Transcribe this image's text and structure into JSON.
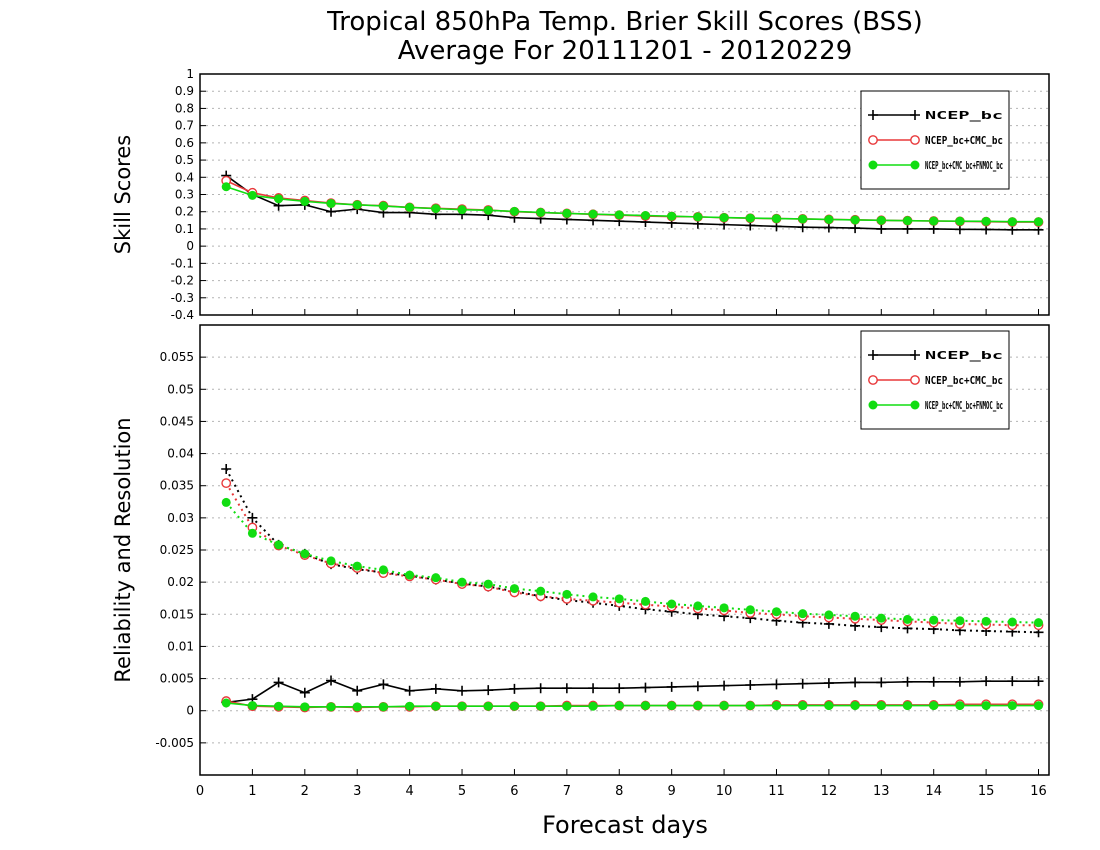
{
  "page": {
    "title_line1": "Tropical 850hPa Temp. Brier Skill Scores (BSS)",
    "title_line2": "Average For 20111201 - 20120229",
    "xlabel": "Forecast days"
  },
  "colors": {
    "black": "#000000",
    "red": "#e8383a",
    "green": "#11dd11",
    "grid": "#b4b4b4"
  },
  "chart_data": [
    {
      "type": "line",
      "ylabel": "Skill Scores",
      "xlim": [
        0,
        16.2
      ],
      "ylim": [
        -0.4,
        1
      ],
      "xticks": [
        0,
        1,
        2,
        3,
        4,
        5,
        6,
        7,
        8,
        9,
        10,
        11,
        12,
        13,
        14,
        15,
        16
      ],
      "yticks": [
        "1",
        "0.9",
        "0.8",
        "0.7",
        "0.6",
        "0.5",
        "0.4",
        "0.3",
        "0.2",
        "0.1",
        "0",
        "-0.1",
        "-0.2",
        "-0.3",
        "-0.4"
      ],
      "grid": true,
      "legend_position": "top-right",
      "legend": [
        "NCEP_bc",
        "NCEP_bc+CMC_bc",
        "NCEP_bc+CMC_bc+FNMOC_bc"
      ],
      "x": [
        0.5,
        1,
        1.5,
        2,
        2.5,
        3,
        3.5,
        4,
        4.5,
        5,
        5.5,
        6,
        6.5,
        7,
        7.5,
        8,
        8.5,
        9,
        9.5,
        10,
        10.5,
        11,
        11.5,
        12,
        12.5,
        13,
        13.5,
        14,
        14.5,
        15,
        15.5,
        16
      ],
      "series": [
        {
          "name": "NCEP_bc",
          "color": "black",
          "marker": "plus",
          "style": "solid",
          "values": [
            0.41,
            0.3,
            0.235,
            0.24,
            0.2,
            0.215,
            0.195,
            0.195,
            0.185,
            0.185,
            0.18,
            0.165,
            0.16,
            0.155,
            0.15,
            0.145,
            0.14,
            0.135,
            0.13,
            0.125,
            0.12,
            0.115,
            0.11,
            0.108,
            0.105,
            0.1,
            0.1,
            0.1,
            0.098,
            0.097,
            0.095,
            0.095
          ]
        },
        {
          "name": "NCEP_bc+CMC_bc",
          "color": "red",
          "marker": "circle",
          "style": "solid",
          "values": [
            0.38,
            0.31,
            0.28,
            0.265,
            0.25,
            0.24,
            0.235,
            0.225,
            0.22,
            0.215,
            0.21,
            0.2,
            0.195,
            0.19,
            0.185,
            0.18,
            0.175,
            0.172,
            0.17,
            0.165,
            0.162,
            0.16,
            0.158,
            0.155,
            0.153,
            0.15,
            0.148,
            0.146,
            0.144,
            0.142,
            0.14,
            0.14
          ]
        },
        {
          "name": "NCEP_bc+CMC_bc+FNMOC_bc",
          "color": "green",
          "marker": "dot",
          "style": "solid",
          "values": [
            0.345,
            0.295,
            0.275,
            0.26,
            0.248,
            0.24,
            0.233,
            0.225,
            0.218,
            0.212,
            0.208,
            0.202,
            0.196,
            0.19,
            0.186,
            0.182,
            0.178,
            0.174,
            0.17,
            0.166,
            0.163,
            0.16,
            0.158,
            0.155,
            0.152,
            0.15,
            0.148,
            0.146,
            0.145,
            0.144,
            0.142,
            0.142
          ]
        }
      ]
    },
    {
      "type": "line",
      "ylabel": "Reliability and Resolution",
      "xlim": [
        0,
        16.2
      ],
      "ylim": [
        -0.01,
        0.06
      ],
      "xticks": [
        0,
        1,
        2,
        3,
        4,
        5,
        6,
        7,
        8,
        9,
        10,
        11,
        12,
        13,
        14,
        15,
        16
      ],
      "yticks": [
        "0.055",
        "0.05",
        "0.045",
        "0.04",
        "0.035",
        "0.03",
        "0.025",
        "0.02",
        "0.015",
        "0.01",
        "0.005",
        "0",
        "-0.005"
      ],
      "grid": true,
      "legend_position": "top-right",
      "legend": [
        "NCEP_bc",
        "NCEP_bc+CMC_bc",
        "NCEP_bc+CMC_bc+FNMOC_bc"
      ],
      "x": [
        0.5,
        1,
        1.5,
        2,
        2.5,
        3,
        3.5,
        4,
        4.5,
        5,
        5.5,
        6,
        6.5,
        7,
        7.5,
        8,
        8.5,
        9,
        9.5,
        10,
        10.5,
        11,
        11.5,
        12,
        12.5,
        13,
        13.5,
        14,
        14.5,
        15,
        15.5,
        16
      ],
      "series": [
        {
          "name": "NCEP_bc resolution",
          "color": "black",
          "marker": "plus",
          "style": "dotted",
          "values": [
            0.0376,
            0.03,
            0.0258,
            0.0244,
            0.0228,
            0.022,
            0.0215,
            0.021,
            0.0204,
            0.0198,
            0.0193,
            0.0186,
            0.0178,
            0.0172,
            0.0168,
            0.0163,
            0.0158,
            0.0154,
            0.015,
            0.0147,
            0.0144,
            0.014,
            0.0137,
            0.0135,
            0.0132,
            0.013,
            0.0128,
            0.0127,
            0.0125,
            0.0124,
            0.0123,
            0.0122
          ]
        },
        {
          "name": "NCEP_bc+CMC_bc resolution",
          "color": "red",
          "marker": "circle",
          "style": "dotted",
          "values": [
            0.0354,
            0.0285,
            0.0257,
            0.0242,
            0.0229,
            0.0222,
            0.0214,
            0.0209,
            0.0204,
            0.0197,
            0.0193,
            0.0184,
            0.0178,
            0.0174,
            0.0171,
            0.0168,
            0.0165,
            0.0162,
            0.0159,
            0.0156,
            0.0152,
            0.015,
            0.0147,
            0.0145,
            0.0143,
            0.0141,
            0.0139,
            0.0137,
            0.0135,
            0.0134,
            0.0133,
            0.0133
          ]
        },
        {
          "name": "NCEP_bc+CMC_bc+FNMOC_bc resolution",
          "color": "green",
          "marker": "dot",
          "style": "dotted",
          "values": [
            0.0324,
            0.0276,
            0.0258,
            0.0244,
            0.0233,
            0.0225,
            0.0219,
            0.0211,
            0.0207,
            0.02,
            0.0197,
            0.019,
            0.0186,
            0.0181,
            0.0177,
            0.0174,
            0.017,
            0.0166,
            0.0163,
            0.016,
            0.0157,
            0.0154,
            0.0151,
            0.0149,
            0.0147,
            0.0144,
            0.0142,
            0.0141,
            0.014,
            0.0139,
            0.0138,
            0.0137
          ]
        },
        {
          "name": "NCEP_bc reliability",
          "color": "black",
          "marker": "plus",
          "style": "solid",
          "values": [
            0.0013,
            0.0018,
            0.0044,
            0.0028,
            0.0047,
            0.0031,
            0.0041,
            0.0031,
            0.0034,
            0.0031,
            0.0032,
            0.0034,
            0.0035,
            0.0035,
            0.0035,
            0.0035,
            0.0036,
            0.0037,
            0.0038,
            0.0039,
            0.004,
            0.0041,
            0.0042,
            0.0043,
            0.0044,
            0.0044,
            0.0045,
            0.0045,
            0.0045,
            0.0046,
            0.0046,
            0.0046
          ]
        },
        {
          "name": "NCEP_bc+CMC_bc reliability",
          "color": "red",
          "marker": "circle",
          "style": "solid",
          "values": [
            0.0015,
            0.0007,
            0.0006,
            0.0005,
            0.0006,
            0.0005,
            0.0006,
            0.0006,
            0.0007,
            0.0007,
            0.0007,
            0.0007,
            0.0007,
            0.0008,
            0.0008,
            0.0008,
            0.0008,
            0.0008,
            0.0008,
            0.0008,
            0.0008,
            0.0009,
            0.0009,
            0.0009,
            0.0009,
            0.0009,
            0.0009,
            0.0009,
            0.001,
            0.001,
            0.001,
            0.001
          ]
        },
        {
          "name": "NCEP_bc+CMC_bc+FNMOC_bc reliability",
          "color": "green",
          "marker": "dot",
          "style": "solid",
          "values": [
            0.0012,
            0.0008,
            0.0007,
            0.0006,
            0.0006,
            0.0006,
            0.0006,
            0.0007,
            0.0007,
            0.0007,
            0.0007,
            0.0007,
            0.0007,
            0.0007,
            0.0007,
            0.0008,
            0.0008,
            0.0008,
            0.0008,
            0.0008,
            0.0008,
            0.0008,
            0.0008,
            0.0008,
            0.0008,
            0.0008,
            0.0008,
            0.0008,
            0.0008,
            0.0008,
            0.0008,
            0.0008
          ]
        }
      ]
    }
  ]
}
